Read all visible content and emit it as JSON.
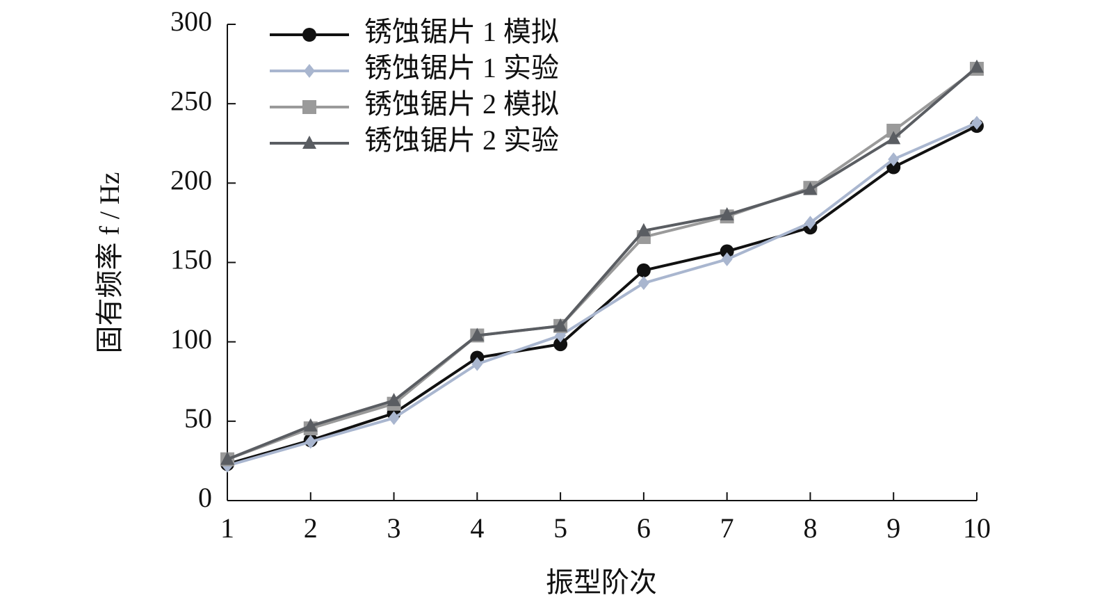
{
  "chart_data": {
    "type": "line",
    "x_label": "振型阶次",
    "y_label": "固有频率 f / Hz",
    "x": [
      1,
      2,
      3,
      4,
      5,
      6,
      7,
      8,
      9,
      10
    ],
    "xlim": [
      1,
      10
    ],
    "xticks": [
      1,
      2,
      3,
      4,
      5,
      6,
      7,
      8,
      9,
      10
    ],
    "ylim": [
      0,
      300
    ],
    "yticks": [
      0,
      50,
      100,
      150,
      200,
      250,
      300
    ],
    "grid": false,
    "legend": "upper left",
    "series": [
      {
        "name": "锈蚀锯片 1 模拟",
        "color": "#111111",
        "marker": "circle",
        "values": [
          23,
          38,
          55,
          90,
          98.5,
          145,
          157,
          172,
          210,
          236
        ]
      },
      {
        "name": "锈蚀锯片 1 实验",
        "color": "#a9b6cf",
        "marker": "diamond",
        "values": [
          22,
          37,
          52,
          86,
          104,
          137,
          152,
          175,
          215,
          238
        ]
      },
      {
        "name": "锈蚀锯片 2 模拟",
        "color": "#9a9a9a",
        "marker": "square",
        "values": [
          26,
          45.5,
          61,
          104,
          110,
          166,
          179,
          197,
          233,
          272
        ]
      },
      {
        "name": "锈蚀锯片 2 实验",
        "color": "#5a5d62",
        "marker": "triangle",
        "values": [
          26,
          47,
          63,
          104,
          110,
          170,
          180,
          196,
          228,
          273
        ]
      }
    ]
  }
}
